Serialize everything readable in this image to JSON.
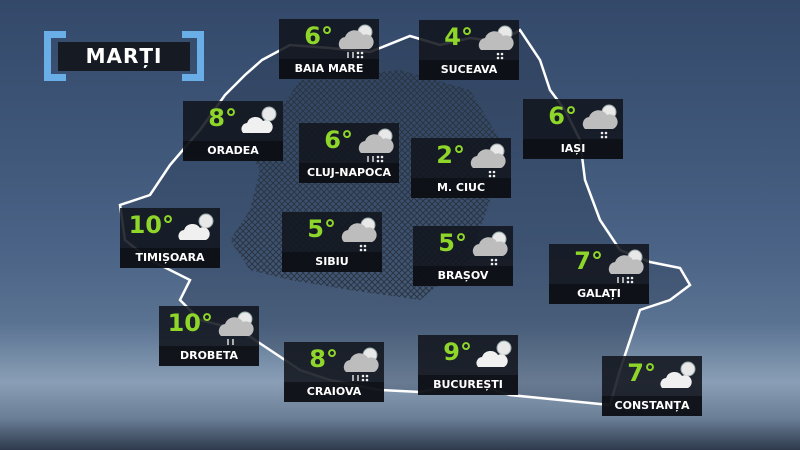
{
  "title": "MARȚI",
  "colors": {
    "temperature": "#8fd62a",
    "bracket": "#6aaee8",
    "card": "#12161e"
  },
  "cities": [
    {
      "name": "BAIA MARE",
      "temp": "6°",
      "icon": "rain-snow-cloud-icon"
    },
    {
      "name": "SUCEAVA",
      "temp": "4°",
      "icon": "snow-cloud-icon"
    },
    {
      "name": "ORADEA",
      "temp": "8°",
      "icon": "partly-cloudy-icon"
    },
    {
      "name": "CLUJ-NAPOCA",
      "temp": "6°",
      "icon": "rain-snow-cloud-icon"
    },
    {
      "name": "M. CIUC",
      "temp": "2°",
      "icon": "snow-cloud-icon"
    },
    {
      "name": "IAȘI",
      "temp": "6°",
      "icon": "snow-cloud-icon"
    },
    {
      "name": "TIMIȘOARA",
      "temp": "10°",
      "icon": "partly-cloudy-icon"
    },
    {
      "name": "SIBIU",
      "temp": "5°",
      "icon": "snow-cloud-icon"
    },
    {
      "name": "BRAȘOV",
      "temp": "5°",
      "icon": "snow-cloud-icon"
    },
    {
      "name": "GALAȚI",
      "temp": "7°",
      "icon": "rain-snow-cloud-icon"
    },
    {
      "name": "DROBETA",
      "temp": "10°",
      "icon": "rain-cloud-icon"
    },
    {
      "name": "CRAIOVA",
      "temp": "8°",
      "icon": "rain-snow-cloud-icon"
    },
    {
      "name": "BUCUREȘTI",
      "temp": "9°",
      "icon": "partly-cloudy-icon"
    },
    {
      "name": "CONSTANȚA",
      "temp": "7°",
      "icon": "partly-cloudy-icon"
    }
  ]
}
